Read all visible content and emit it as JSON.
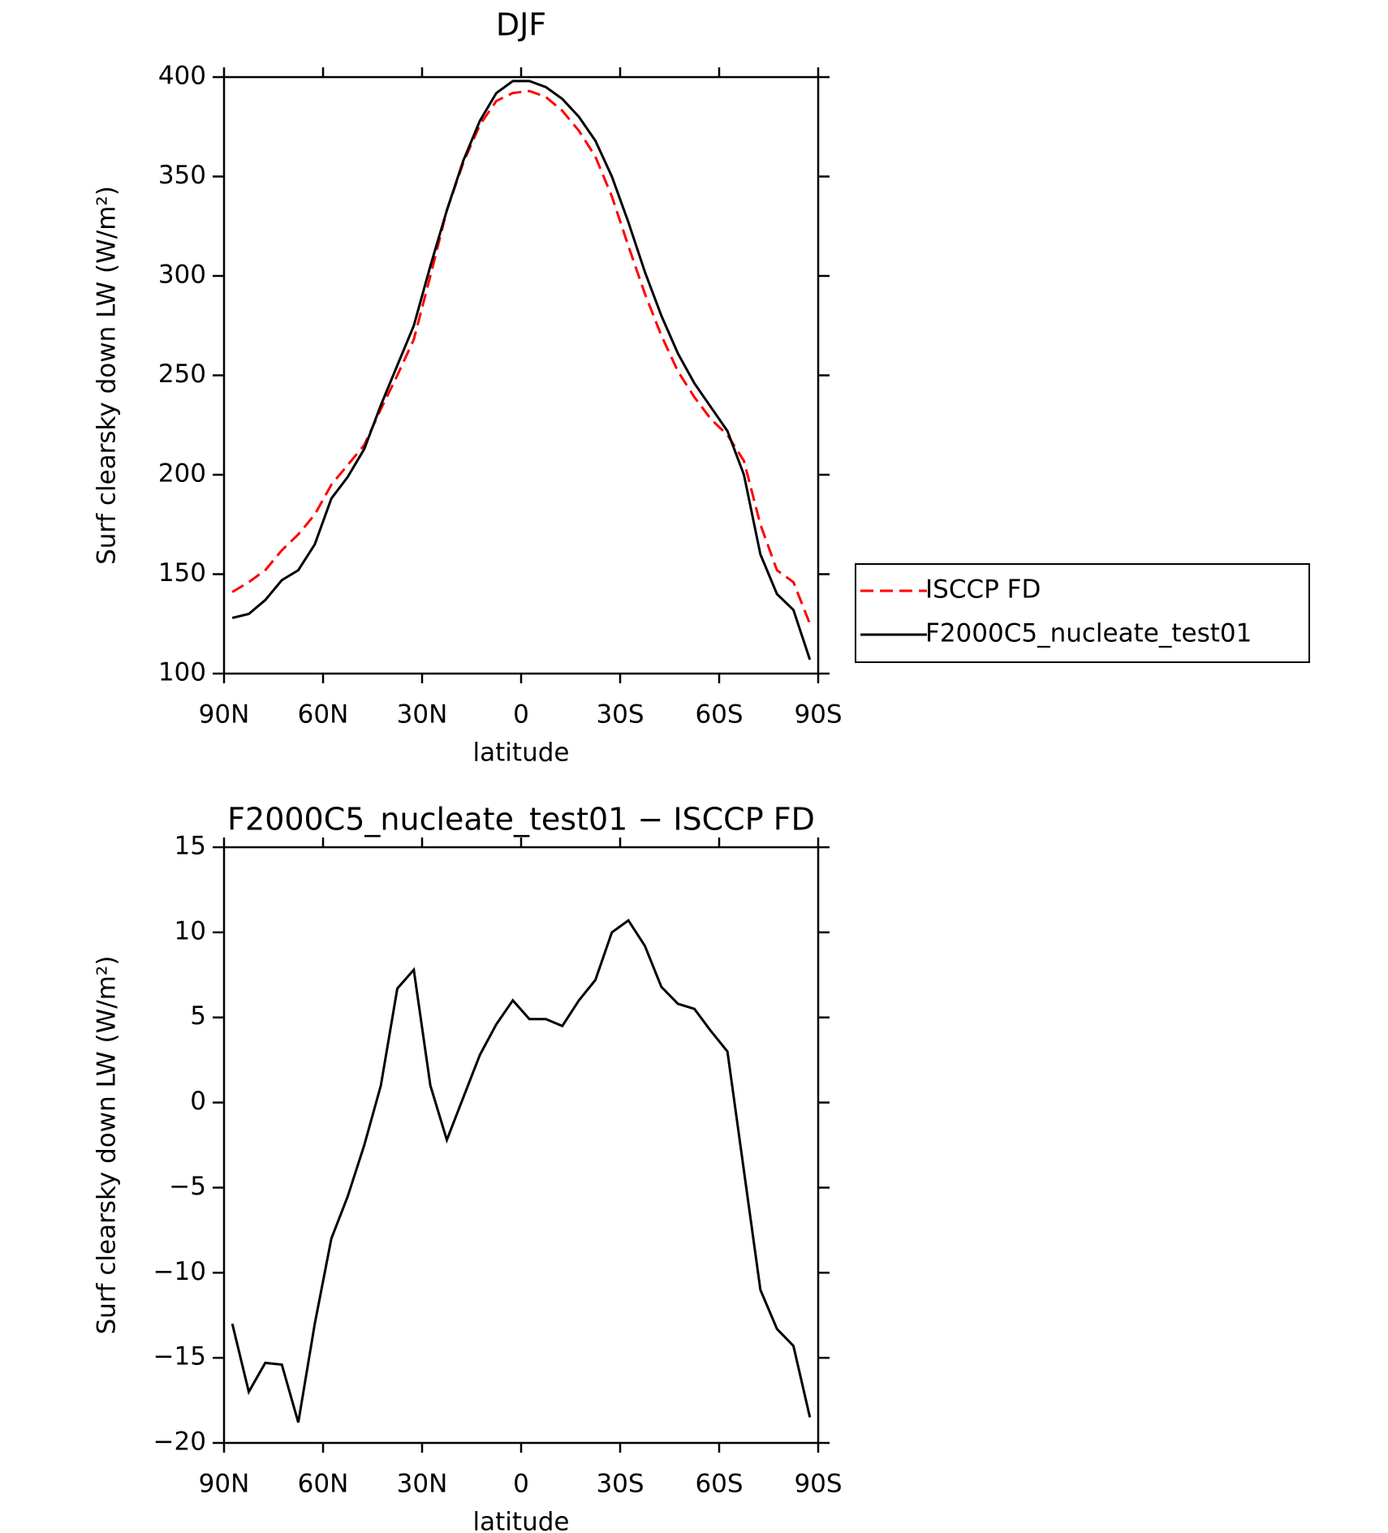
{
  "chart_data": [
    {
      "type": "line",
      "title": "DJF",
      "xlabel": "latitude",
      "ylabel": "Surf clearsky down LW (W/m²)",
      "x": [
        87.5,
        82.5,
        77.5,
        72.5,
        67.5,
        62.5,
        57.5,
        52.5,
        47.5,
        42.5,
        37.5,
        32.5,
        27.5,
        22.5,
        17.5,
        12.5,
        7.5,
        2.5,
        -2.5,
        -7.5,
        -12.5,
        -17.5,
        -22.5,
        -27.5,
        -32.5,
        -37.5,
        -42.5,
        -47.5,
        -52.5,
        -57.5,
        -62.5,
        -67.5,
        -72.5,
        -77.5,
        -82.5,
        -87.5
      ],
      "series": [
        {
          "name": "ISCCP FD",
          "color": "#ff0000",
          "dashed": true,
          "values": [
            141,
            146,
            152,
            162,
            170,
            180,
            195,
            205,
            215,
            233,
            250,
            268,
            300,
            333,
            357,
            376,
            388,
            392,
            393,
            390,
            383,
            373,
            360,
            340,
            315,
            291,
            270,
            252,
            239,
            228,
            220,
            207,
            175,
            152,
            146,
            125
          ]
        },
        {
          "name": "F2000C5_nucleate_test01",
          "color": "#000000",
          "dashed": false,
          "values": [
            128,
            130,
            137,
            147,
            152,
            165,
            188,
            199,
            213,
            235,
            255,
            275,
            305,
            333,
            358,
            378,
            392,
            398,
            398,
            395,
            389,
            380,
            368,
            350,
            327,
            302,
            280,
            261,
            246,
            234,
            222,
            200,
            160,
            140,
            132,
            107
          ]
        }
      ],
      "xlim": [
        90,
        -90
      ],
      "xticks": [
        {
          "value": 90,
          "label": "90N"
        },
        {
          "value": 60,
          "label": "60N"
        },
        {
          "value": 30,
          "label": "30N"
        },
        0,
        {
          "value": -30,
          "label": "30S"
        },
        {
          "value": -60,
          "label": "60S"
        },
        {
          "value": -90,
          "label": "90S"
        }
      ],
      "ylim": [
        100,
        400
      ],
      "yticks": [
        100,
        150,
        200,
        250,
        300,
        350,
        400
      ],
      "legend": "right"
    },
    {
      "type": "line",
      "title": "F2000C5_nucleate_test01 − ISCCP FD",
      "xlabel": "latitude",
      "ylabel": "Surf clearsky down LW (W/m²)",
      "x": [
        87.5,
        82.5,
        77.5,
        72.5,
        67.5,
        62.5,
        57.5,
        52.5,
        47.5,
        42.5,
        37.5,
        32.5,
        27.5,
        22.5,
        17.5,
        12.5,
        7.5,
        2.5,
        -2.5,
        -7.5,
        -12.5,
        -17.5,
        -22.5,
        -27.5,
        -32.5,
        -37.5,
        -42.5,
        -47.5,
        -52.5,
        -57.5,
        -62.5,
        -67.5,
        -72.5,
        -77.5,
        -82.5,
        -87.5
      ],
      "series": [
        {
          "color": "#000000",
          "dashed": false,
          "values": [
            -13,
            -17,
            -15.3,
            -15.4,
            -18.8,
            -13,
            -8,
            -5.5,
            -2.5,
            1,
            6.7,
            7.8,
            1,
            -2.2,
            0.3,
            2.8,
            4.6,
            6,
            4.9,
            4.9,
            4.5,
            6,
            7.2,
            10,
            10.7,
            9.2,
            6.8,
            5.8,
            5.5,
            4.2,
            3,
            -4,
            -11,
            -13.3,
            -14.3,
            -18.5
          ]
        }
      ],
      "xlim": [
        90,
        -90
      ],
      "xticks": [
        {
          "value": 90,
          "label": "90N"
        },
        {
          "value": 60,
          "label": "60N"
        },
        {
          "value": 30,
          "label": "30N"
        },
        0,
        {
          "value": -30,
          "label": "30S"
        },
        {
          "value": -60,
          "label": "60S"
        },
        {
          "value": -90,
          "label": "90S"
        }
      ],
      "ylim": [
        -20,
        15
      ],
      "yticks": [
        {
          "value": -20,
          "label": "−20"
        },
        {
          "value": -15,
          "label": "−15"
        },
        {
          "value": -10,
          "label": "−10"
        },
        {
          "value": -5,
          "label": "−5"
        },
        0,
        5,
        10,
        15
      ]
    }
  ]
}
